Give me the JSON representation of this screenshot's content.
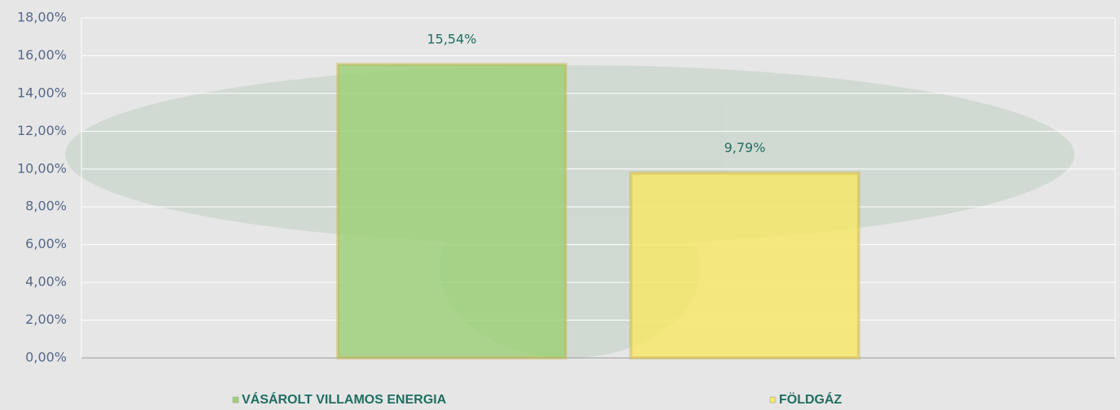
{
  "chart_data": {
    "type": "bar",
    "categories": [
      null
    ],
    "series": [
      {
        "name": "VÁSÁROLT VILLAMOS ENERGIA",
        "color": "#9fd07a",
        "values": [
          15.54
        ],
        "value_labels": [
          "15,54%"
        ]
      },
      {
        "name": "FÖLDGÁZ",
        "color": "#f4e66a",
        "values": [
          9.79
        ],
        "value_labels": [
          "9,79%"
        ]
      }
    ],
    "ylim": [
      0,
      18
    ],
    "yticks": [
      {
        "value": 0,
        "label": "0,00%"
      },
      {
        "value": 2,
        "label": "2,00%"
      },
      {
        "value": 4,
        "label": "4,00%"
      },
      {
        "value": 6,
        "label": "6,00%"
      },
      {
        "value": 8,
        "label": "8,00%"
      },
      {
        "value": 10,
        "label": "10,00%"
      },
      {
        "value": 12,
        "label": "12,00%"
      },
      {
        "value": 14,
        "label": "14,00%"
      },
      {
        "value": 16,
        "label": "16,00%"
      },
      {
        "value": 18,
        "label": "18,00%"
      }
    ],
    "grid": true,
    "legend": "bottom"
  }
}
